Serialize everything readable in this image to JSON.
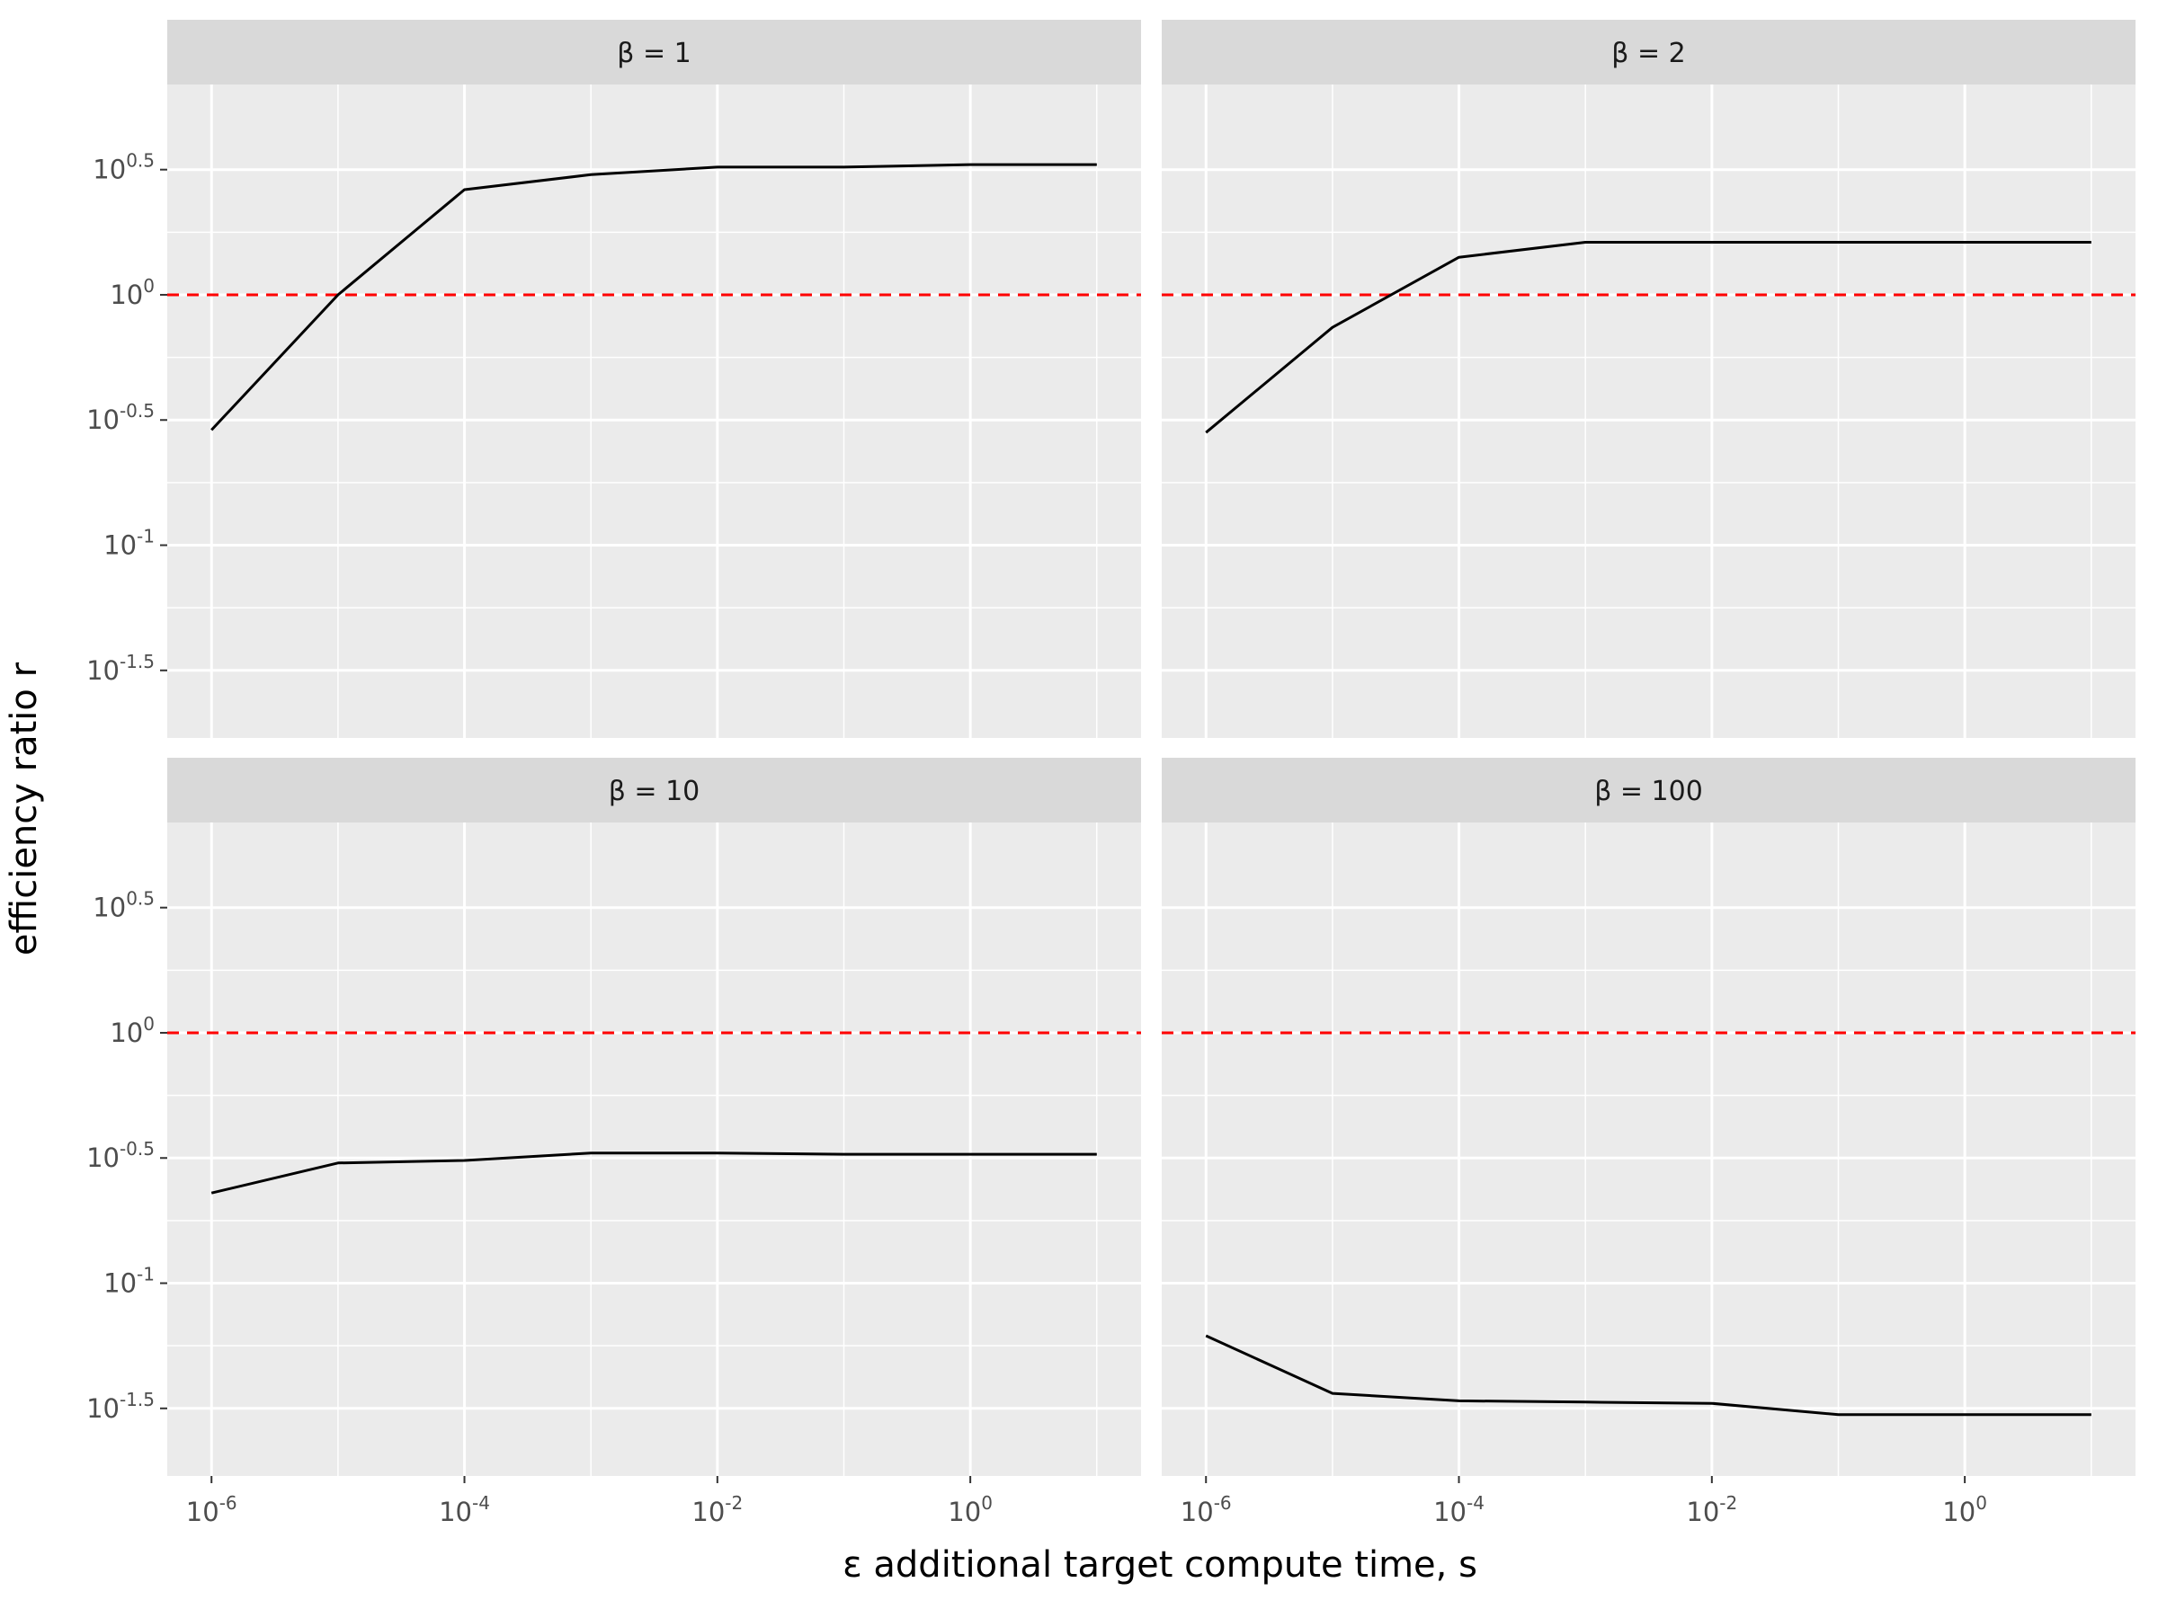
{
  "chart_data": {
    "type": "line",
    "layout": "facet-grid-2x2",
    "xlabel": "ε additional target compute time, s",
    "ylabel": "efficiency ratio r",
    "x_scale": "log10",
    "y_scale": "log10",
    "x_range_log10": [
      -6.35,
      1.35
    ],
    "y_range_log10": [
      -1.77,
      0.84
    ],
    "x_ticks": [
      {
        "base": "10",
        "exp": "-6",
        "value_log10": -6
      },
      {
        "base": "10",
        "exp": "-4",
        "value_log10": -4
      },
      {
        "base": "10",
        "exp": "-2",
        "value_log10": -2
      },
      {
        "base": "10",
        "exp": "0",
        "value_log10": 0
      }
    ],
    "y_ticks": [
      {
        "base": "10",
        "exp": "0.5",
        "value_log10": 0.5
      },
      {
        "base": "10",
        "exp": "0",
        "value_log10": 0
      },
      {
        "base": "10",
        "exp": "-0.5",
        "value_log10": -0.5
      },
      {
        "base": "10",
        "exp": "-1",
        "value_log10": -1
      },
      {
        "base": "10",
        "exp": "-1.5",
        "value_log10": -1.5
      }
    ],
    "reference_line": {
      "y_log10": 0,
      "color": "#ff0000",
      "style": "dashed"
    },
    "line_color": "#000000",
    "panel_background": "#ebebeb",
    "strip_background": "#d9d9d9",
    "grid": true,
    "x_log10": [
      -6,
      -5,
      -4,
      -3,
      -2,
      -1,
      0,
      1
    ],
    "panels": [
      {
        "label": "β = 1",
        "y_log10": [
          -0.54,
          0.0,
          0.42,
          0.48,
          0.51,
          0.51,
          0.52,
          0.52
        ]
      },
      {
        "label": "β = 2",
        "y_log10": [
          -0.55,
          -0.13,
          0.15,
          0.21,
          0.21,
          0.21,
          0.21,
          0.21
        ]
      },
      {
        "label": "β = 10",
        "y_log10": [
          -0.64,
          -0.52,
          -0.51,
          -0.48,
          -0.48,
          -0.485,
          -0.485,
          -0.485
        ]
      },
      {
        "label": "β = 100",
        "y_log10": [
          -1.21,
          -1.44,
          -1.47,
          -1.475,
          -1.48,
          -1.525,
          -1.525,
          -1.525
        ]
      }
    ]
  }
}
